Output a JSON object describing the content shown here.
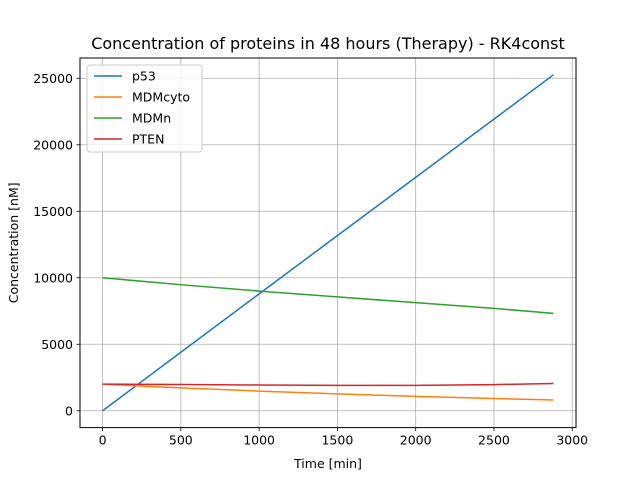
{
  "chart_data": {
    "type": "line",
    "title": "Concentration of proteins in 48 hours (Therapy) - RK4const",
    "xlabel": "Time [min]",
    "ylabel": "Concentration [nM]",
    "xlim": [
      -144,
      3024
    ],
    "ylim": [
      -1265,
      26525
    ],
    "xticks": [
      0,
      500,
      1000,
      1500,
      2000,
      2500,
      3000
    ],
    "yticks": [
      0,
      5000,
      10000,
      15000,
      20000,
      25000
    ],
    "grid": true,
    "legend_position": "top-left",
    "series": [
      {
        "name": "p53",
        "color": "#1f77b4",
        "x": [
          0,
          500,
          1000,
          1500,
          2000,
          2500,
          2880
        ],
        "y": [
          0,
          4400,
          8790,
          13170,
          17550,
          21930,
          25260
        ]
      },
      {
        "name": "MDMcyto",
        "color": "#ff7f0e",
        "x": [
          0,
          500,
          1000,
          1500,
          2000,
          2500,
          2880
        ],
        "y": [
          2000,
          1720,
          1480,
          1270,
          1080,
          920,
          810
        ]
      },
      {
        "name": "MDMn",
        "color": "#2ca02c",
        "x": [
          0,
          500,
          1000,
          1500,
          2000,
          2500,
          2880
        ],
        "y": [
          10000,
          9480,
          9000,
          8560,
          8130,
          7700,
          7320
        ]
      },
      {
        "name": "PTEN",
        "color": "#d62728",
        "x": [
          0,
          500,
          1000,
          1500,
          2000,
          2500,
          2880
        ],
        "y": [
          2000,
          1980,
          1940,
          1910,
          1910,
          1970,
          2050
        ]
      }
    ]
  }
}
